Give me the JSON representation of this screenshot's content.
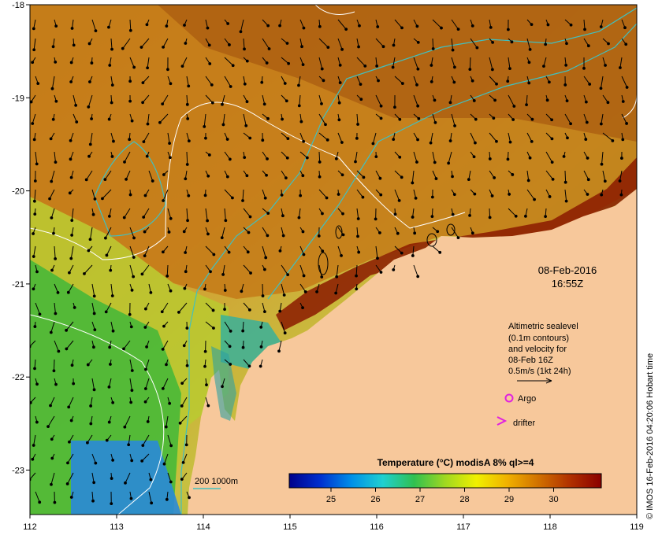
{
  "map": {
    "x_ticks": [
      "112",
      "113",
      "114",
      "115",
      "116",
      "117",
      "118",
      "119"
    ],
    "y_ticks": [
      "-18",
      "-19",
      "-20",
      "-21",
      "-22",
      "-23"
    ],
    "land_color": "#f7c89b",
    "sea_color_warm": "#c97a10",
    "sea_color_cool": "#5cc43c"
  },
  "date": {
    "line1": "08-Feb-2016",
    "line2": "16:55Z"
  },
  "legend": {
    "line1": "Altimetric sealevel",
    "line2": "(0.1m contours)",
    "line3": "and velocity for",
    "line4": "08-Feb 16Z",
    "line5": "0.5m/s (1kt 24h)",
    "argo_label": "Argo",
    "drifter_label": "drifter",
    "argo_color": "#e020e0",
    "drifter_color": "#e020e0"
  },
  "contour_legend": {
    "label": "200  1000m",
    "color": "#40c0c0"
  },
  "colorbar": {
    "title": "Temperature (°C) modisA 8% ql>=4",
    "ticks": [
      "25",
      "26",
      "27",
      "28",
      "29",
      "30"
    ],
    "stops": [
      "#00008b",
      "#0030d0",
      "#0090e8",
      "#20d0d0",
      "#30c050",
      "#a0d820",
      "#f0f000",
      "#f0b000",
      "#d07000",
      "#b03000",
      "#8b0000"
    ]
  },
  "credit": "© IMOS 16-Feb-2016 04:20:06 Hobart time"
}
